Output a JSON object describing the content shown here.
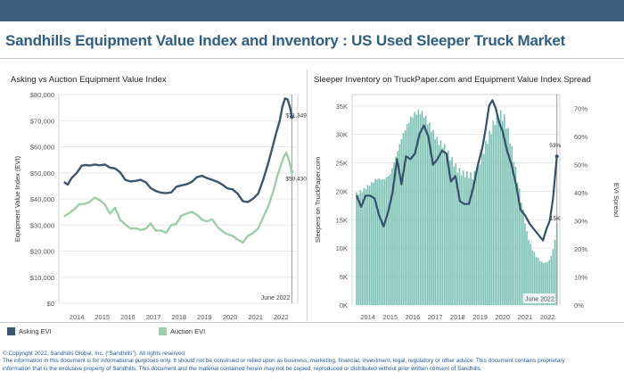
{
  "header": {
    "title": "Sandhills Equipment Value Index and Inventory : US Used Sleeper Truck Market"
  },
  "colors": {
    "topbar": "#3b5f7d",
    "asking": "#3d5670",
    "auction": "#9ccfa9",
    "bars": "#7cc2b4",
    "spread": "#34506c"
  },
  "chart_data": [
    {
      "type": "line",
      "title": "Asking vs Auction Equipment Value Index",
      "ylabel": "Equipment Value Index (EVI)",
      "xlabel": "",
      "ylim": [
        0,
        80000
      ],
      "y_ticks": [
        "$0",
        "$10,000",
        "$20,000",
        "$30,000",
        "$40,000",
        "$50,000",
        "$60,000",
        "$70,000",
        "$80,000"
      ],
      "x_ticks": [
        "2014",
        "2015",
        "2016",
        "2017",
        "2018",
        "2019",
        "2020",
        "2021",
        "2022"
      ],
      "grid": true,
      "legend_position": "bottom",
      "reference_line": {
        "x": 2022.42,
        "label": "June 2022"
      },
      "series": [
        {
          "name": "Asking EVI",
          "color": "#3d5670",
          "end_label": "$71,349",
          "x": [
            2013.5,
            2013.65,
            2013.8,
            2014.0,
            2014.2,
            2014.35,
            2014.5,
            2014.7,
            2014.9,
            2015.1,
            2015.3,
            2015.5,
            2015.7,
            2015.9,
            2016.1,
            2016.3,
            2016.5,
            2016.7,
            2016.9,
            2017.1,
            2017.3,
            2017.5,
            2017.7,
            2017.9,
            2018.1,
            2018.3,
            2018.5,
            2018.7,
            2018.9,
            2019.1,
            2019.3,
            2019.5,
            2019.7,
            2019.9,
            2020.1,
            2020.3,
            2020.5,
            2020.7,
            2020.9,
            2021.1,
            2021.3,
            2021.5,
            2021.65,
            2021.8,
            2021.95,
            2022.05,
            2022.15,
            2022.25,
            2022.35,
            2022.42
          ],
          "values": [
            46500,
            45500,
            48000,
            50000,
            52800,
            53000,
            52800,
            53200,
            52900,
            53200,
            52000,
            51700,
            50200,
            47300,
            46700,
            46900,
            47300,
            46400,
            44100,
            43000,
            42400,
            42200,
            42500,
            44700,
            45200,
            45600,
            46500,
            48300,
            48900,
            48000,
            47300,
            46600,
            45500,
            44000,
            43700,
            42000,
            39100,
            38800,
            40100,
            42000,
            47400,
            53800,
            59300,
            65000,
            70100,
            75400,
            78500,
            78200,
            75000,
            71349
          ]
        },
        {
          "name": "Auction EVI",
          "color": "#9ccfa9",
          "end_label": "$50,430",
          "x": [
            2013.5,
            2013.7,
            2013.9,
            2014.1,
            2014.3,
            2014.5,
            2014.7,
            2014.9,
            2015.1,
            2015.3,
            2015.5,
            2015.7,
            2015.9,
            2016.1,
            2016.3,
            2016.5,
            2016.7,
            2016.9,
            2017.1,
            2017.3,
            2017.5,
            2017.7,
            2017.9,
            2018.1,
            2018.3,
            2018.5,
            2018.7,
            2018.9,
            2019.1,
            2019.3,
            2019.5,
            2019.7,
            2019.9,
            2020.1,
            2020.3,
            2020.5,
            2020.7,
            2020.9,
            2021.1,
            2021.3,
            2021.5,
            2021.7,
            2021.85,
            2022.0,
            2022.1,
            2022.2,
            2022.3,
            2022.42
          ],
          "values": [
            33300,
            34500,
            36000,
            37900,
            38100,
            38800,
            40500,
            39500,
            37900,
            34400,
            36600,
            32000,
            30200,
            28600,
            28800,
            28100,
            28500,
            30600,
            27800,
            27900,
            27000,
            29900,
            30500,
            33600,
            34400,
            35000,
            34000,
            32100,
            31400,
            32200,
            29400,
            27600,
            26500,
            25800,
            24400,
            23300,
            25800,
            26900,
            28700,
            33000,
            37200,
            43200,
            48800,
            53300,
            56000,
            57800,
            55000,
            50430
          ]
        }
      ]
    },
    {
      "type": "bar",
      "title": "Sleeper Inventory on TruckPaper.com and Equipment Value Index Spread",
      "ylabel": "Sleepers on TruckPaper.com",
      "y2label": "EVI Spread",
      "xlabel": "",
      "ylim": [
        0,
        37000
      ],
      "y2lim": [
        0,
        0.75
      ],
      "y_ticks": [
        "0K",
        "5K",
        "10K",
        "15K",
        "20K",
        "25K",
        "30K",
        "35K"
      ],
      "y2_ticks": [
        "0%",
        "10%",
        "20%",
        "30%",
        "40%",
        "50%",
        "60%",
        "70%"
      ],
      "x_ticks": [
        "2014",
        "2015",
        "2016",
        "2017",
        "2018",
        "2019",
        "2020",
        "2021",
        "2022"
      ],
      "grid": true,
      "reference_line": {
        "x": 2022.42,
        "label": "June 2022"
      },
      "end_labels": {
        "inventory": "15K",
        "spread": "53%"
      },
      "inventory_series": {
        "name": "Sleepers on TruckPaper.com",
        "color": "#7cc2b4",
        "x": [
          2013.5,
          2013.8,
          2014.1,
          2014.4,
          2014.7,
          2015.0,
          2015.3,
          2015.5,
          2015.7,
          2015.9,
          2016.1,
          2016.3,
          2016.5,
          2016.7,
          2016.9,
          2017.1,
          2017.4,
          2017.7,
          2018.0,
          2018.3,
          2018.5,
          2018.7,
          2018.9,
          2019.1,
          2019.3,
          2019.5,
          2019.7,
          2019.9,
          2020.1,
          2020.3,
          2020.5,
          2020.7,
          2020.9,
          2021.1,
          2021.3,
          2021.5,
          2021.7,
          2021.9,
          2022.1,
          2022.3,
          2022.42
        ],
        "values": [
          19500,
          20200,
          21200,
          22200,
          22000,
          23000,
          26700,
          29300,
          31200,
          32800,
          33700,
          34100,
          33400,
          32000,
          30400,
          28900,
          27900,
          25800,
          23800,
          23000,
          22900,
          22600,
          24200,
          26500,
          28700,
          30800,
          32800,
          33600,
          32700,
          29700,
          25700,
          21200,
          16900,
          12400,
          10000,
          8600,
          7600,
          7400,
          7900,
          10400,
          14400
        ]
      },
      "spread_series": {
        "name": "EVI Spread",
        "color": "#34506c",
        "x": [
          2013.5,
          2013.7,
          2013.9,
          2014.1,
          2014.3,
          2014.5,
          2014.7,
          2014.9,
          2015.1,
          2015.3,
          2015.5,
          2015.7,
          2015.9,
          2016.1,
          2016.3,
          2016.5,
          2016.7,
          2016.9,
          2017.1,
          2017.3,
          2017.5,
          2017.7,
          2017.9,
          2018.1,
          2018.3,
          2018.5,
          2018.7,
          2018.9,
          2019.1,
          2019.25,
          2019.4,
          2019.55,
          2019.7,
          2019.85,
          2020.0,
          2020.2,
          2020.4,
          2020.6,
          2020.8,
          2021.0,
          2021.2,
          2021.4,
          2021.6,
          2021.8,
          2021.95,
          2022.1,
          2022.25,
          2022.42
        ],
        "values": [
          0.39,
          0.35,
          0.39,
          0.39,
          0.38,
          0.32,
          0.28,
          0.33,
          0.4,
          0.52,
          0.43,
          0.53,
          0.52,
          0.54,
          0.61,
          0.64,
          0.6,
          0.5,
          0.52,
          0.55,
          0.54,
          0.44,
          0.46,
          0.37,
          0.36,
          0.36,
          0.42,
          0.5,
          0.56,
          0.63,
          0.71,
          0.73,
          0.7,
          0.65,
          0.62,
          0.55,
          0.5,
          0.43,
          0.34,
          0.32,
          0.29,
          0.27,
          0.25,
          0.23,
          0.27,
          0.3,
          0.38,
          0.53
        ]
      }
    }
  ],
  "legend": {
    "asking": "Asking EVI",
    "auction": "Auction EVI"
  },
  "footer": {
    "line1": "© Copyright 2022, Sandhills Global, Inc. (“Sandhills”). All rights reserved.",
    "line2": "The information in this document is for informational purposes only.  It should not be construed or relied upon as business, marketing, financial, investment, legal, regulatory or other advice. This document contains proprietary",
    "line3": "information that is the exclusive property of Sandhills. This document and the material contained herein may not be copied, reproduced or distributed without prior written consent of Sandhills."
  }
}
